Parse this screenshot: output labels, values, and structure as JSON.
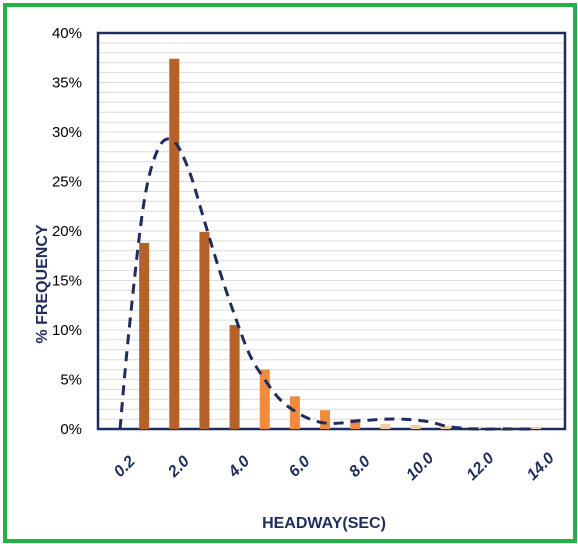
{
  "chart_data": {
    "type": "bar",
    "xlabel": "HEADWAY(SEC)",
    "ylabel": "% FREQUENCY",
    "ylim": [
      0,
      40
    ],
    "y_ticks": [
      "0%",
      "5%",
      "10%",
      "15%",
      "20%",
      "25%",
      "30%",
      "35%",
      "40%"
    ],
    "x_ticks": [
      "0.2",
      "2.0",
      "4.0",
      "6.0",
      "8.0",
      "10.0",
      "12.0",
      "14.0"
    ],
    "grid": true,
    "legend": "none",
    "series": [
      {
        "type": "bar",
        "x": [
          1.0,
          2.0,
          3.0,
          4.0,
          5.0,
          6.0,
          7.0,
          8.0,
          9.0,
          10.0,
          11.0,
          12.0,
          13.0,
          14.0
        ],
        "values": [
          18.8,
          37.4,
          19.9,
          10.5,
          6.0,
          3.3,
          1.9,
          1.0,
          0.5,
          0.4,
          0.3,
          0.2,
          0.2,
          0.2
        ]
      },
      {
        "type": "line",
        "style": "dashed",
        "x": [
          0.2,
          0.5,
          1.0,
          1.5,
          2.0,
          2.5,
          3.0,
          3.5,
          4.0,
          4.5,
          5.0,
          5.5,
          6.0,
          6.5,
          7.0,
          7.5,
          8.0,
          8.5,
          9.0,
          9.5,
          10.0,
          10.5,
          11.0,
          11.5,
          12.0,
          13.0,
          14.0
        ],
        "values": [
          0,
          10,
          23,
          28.5,
          29.0,
          26,
          21,
          16,
          11.5,
          7.5,
          5,
          3,
          1.8,
          1.0,
          0.6,
          0.6,
          0.8,
          0.9,
          1.0,
          1.0,
          0.9,
          0.7,
          0.3,
          0.1,
          0.0,
          0.0,
          0.0
        ]
      }
    ],
    "colors": {
      "bar_dark": "#b5612a",
      "bar_light": "#f08a3c",
      "bar_fade": "#f4c9a6",
      "curve": "#1f2d5c",
      "plot_border": "#1f2d5c",
      "frame": "#21b34a"
    }
  }
}
